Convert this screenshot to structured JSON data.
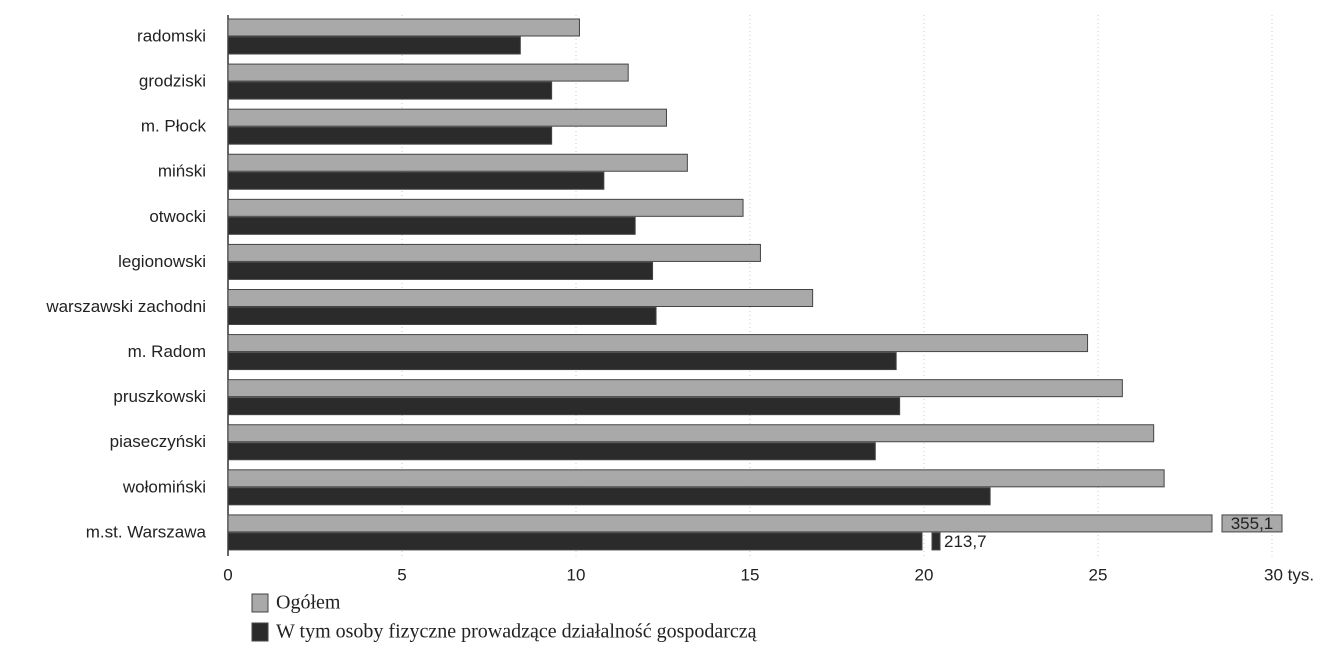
{
  "chart_data": {
    "type": "hbar",
    "categories": [
      "radomski",
      "grodziski",
      "m. Płock",
      "miński",
      "otwocki",
      "legionowski",
      "warszawski zachodni",
      "m. Radom",
      "pruszkowski",
      "piaseczyński",
      "wołomiński",
      "m.st. Warszawa"
    ],
    "series": [
      {
        "name": "Ogółem",
        "color": "#a9a9a9",
        "values": [
          10.1,
          11.5,
          12.6,
          13.2,
          14.8,
          15.3,
          16.8,
          24.7,
          25.7,
          26.6,
          26.9,
          355.1
        ],
        "value_labels": [
          null,
          null,
          null,
          null,
          null,
          null,
          null,
          null,
          null,
          null,
          null,
          "355,1"
        ]
      },
      {
        "name": "W tym osoby fizyczne prowadzące działalność gospodarczą",
        "color": "#2b2b2b",
        "values": [
          8.4,
          9.3,
          9.3,
          10.8,
          11.7,
          12.2,
          12.3,
          19.2,
          19.3,
          18.6,
          21.9,
          213.7
        ],
        "value_labels": [
          null,
          null,
          null,
          null,
          null,
          null,
          null,
          null,
          null,
          null,
          null,
          "213,7"
        ]
      }
    ],
    "xlim": [
      0,
      30
    ],
    "xticks": [
      0,
      5,
      10,
      15,
      20,
      25,
      {
        "value": 30,
        "label": "30 tys."
      }
    ],
    "grid": true
  }
}
